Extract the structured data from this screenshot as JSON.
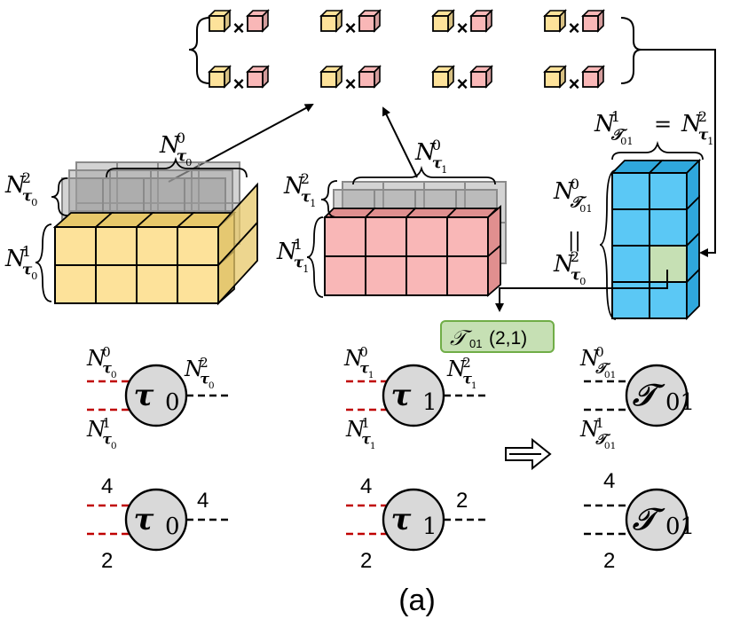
{
  "colors": {
    "yellow": "#fde29a",
    "yellow_side": "#e7c86a",
    "pink": "#f9b7b7",
    "pink_side": "#e08f8f",
    "blue": "#5bc8f5",
    "blue_side": "#2fa7dc",
    "green": "#c6e0b4",
    "green_border": "#70ad47",
    "node_fill": "#d9d9d9",
    "red_dash": "#c00000"
  },
  "top_products": {
    "times_symbol": "×",
    "count_per_row": 4,
    "rows": 2
  },
  "tensor_labels": {
    "tau0_top": {
      "base": "N",
      "sub": "τ",
      "subsub": "0",
      "sup": "0"
    },
    "tau0_left_upper": {
      "base": "N",
      "sub": "τ",
      "subsub": "0",
      "sup": "2"
    },
    "tau0_left_lower": {
      "base": "N",
      "sub": "τ",
      "subsub": "0",
      "sup": "1"
    },
    "tau1_top": {
      "base": "N",
      "sub": "τ",
      "subsub": "1",
      "sup": "0"
    },
    "tau1_left_upper": {
      "base": "N",
      "sub": "τ",
      "subsub": "1",
      "sup": "2"
    },
    "tau1_left_lower": {
      "base": "N",
      "sub": "τ",
      "subsub": "1",
      "sup": "1"
    },
    "t01_top_left": {
      "base": "N",
      "sub": "𝒯",
      "subsub": "01",
      "sup": "1"
    },
    "t01_top_eq": "=",
    "t01_top_right": {
      "base": "N",
      "sub": "τ",
      "subsub": "1",
      "sup": "2"
    },
    "t01_left_top": {
      "base": "N",
      "sub": "𝒯",
      "subsub": "01",
      "sup": "0"
    },
    "t01_left_eq": "||",
    "t01_left_bottom": {
      "base": "N",
      "sub": "τ",
      "subsub": "0",
      "sup": "2"
    }
  },
  "index_tag": {
    "symbol": "𝒯",
    "subscript": "01",
    "indices": "(2,1)"
  },
  "nodes": {
    "tau0": {
      "symbol": "τ",
      "subscript": "0"
    },
    "tau1": {
      "symbol": "τ",
      "subscript": "1"
    },
    "t01": {
      "symbol": "𝒯",
      "subscript": "01"
    }
  },
  "network_labels": {
    "tau0": {
      "left_top": {
        "base": "N",
        "sub": "τ",
        "subsub": "0",
        "sup": "0"
      },
      "left_bottom": {
        "base": "N",
        "sub": "τ",
        "subsub": "0",
        "sup": "1"
      },
      "right": {
        "base": "N",
        "sub": "τ",
        "subsub": "0",
        "sup": "2"
      }
    },
    "tau1": {
      "left_top": {
        "base": "N",
        "sub": "τ",
        "subsub": "1",
        "sup": "0"
      },
      "left_bottom": {
        "base": "N",
        "sub": "τ",
        "subsub": "1",
        "sup": "1"
      },
      "right": {
        "base": "N",
        "sub": "τ",
        "subsub": "1",
        "sup": "2"
      }
    },
    "t01": {
      "left_top": {
        "base": "N",
        "sub": "𝒯",
        "subsub": "01",
        "sup": "0"
      },
      "left_bottom": {
        "base": "N",
        "sub": "𝒯",
        "subsub": "01",
        "sup": "1"
      }
    }
  },
  "dimension_numbers": {
    "tau0_top": "4",
    "tau0_bottom": "2",
    "tau0_right": "4",
    "tau1_top": "4",
    "tau1_bottom": "2",
    "tau1_right": "2",
    "t01_top": "4",
    "t01_bottom": "2"
  },
  "caption": "(a)"
}
